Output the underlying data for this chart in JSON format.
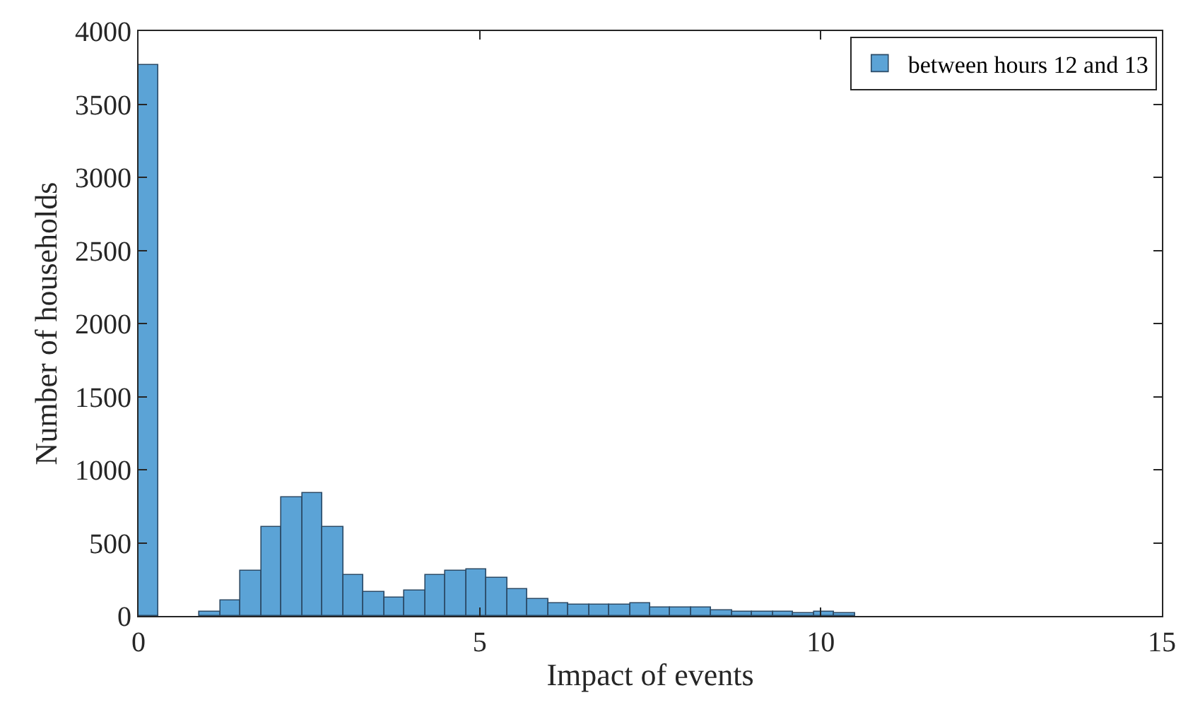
{
  "chart_data": {
    "type": "histogram",
    "xlabel": "Impact of events",
    "ylabel": "Number of households",
    "bins": [
      0,
      0.3,
      0.6,
      0.9,
      1.2,
      1.5,
      1.8,
      2.1,
      2.4,
      2.7,
      3.0,
      3.3,
      3.6,
      3.9,
      4.2,
      4.5,
      4.8,
      5.1,
      5.4,
      5.7,
      6.0,
      6.3,
      6.6,
      6.9,
      7.2,
      7.5,
      7.8,
      8.1,
      8.4,
      8.7,
      9.0,
      9.3,
      9.6,
      9.9,
      10.2,
      10.5,
      10.8,
      11.1,
      11.4,
      11.7,
      12.0,
      12.3,
      12.6,
      12.9,
      13.2,
      13.5,
      13.8,
      14.1,
      14.4,
      14.7,
      15.0
    ],
    "series": [
      {
        "name": "between hours 12 and 13",
        "color": "#5ba3d6",
        "values": [
          3770,
          0,
          0,
          25,
          110,
          310,
          610,
          810,
          840,
          610,
          280,
          160,
          130,
          175,
          280,
          310,
          320,
          260,
          180,
          120,
          90,
          80,
          80,
          80,
          90,
          55,
          60,
          60,
          40,
          30,
          30,
          30,
          20,
          30,
          20,
          0,
          0,
          0,
          0,
          0,
          0,
          0,
          0,
          0,
          0,
          0,
          0,
          0,
          0,
          0
        ]
      }
    ],
    "xlim": [
      0,
      15
    ],
    "xticks": [
      0,
      5,
      10,
      15
    ],
    "ylim": [
      0,
      4000
    ],
    "yticks": [
      0,
      500,
      1000,
      1500,
      2000,
      2500,
      3000,
      3500,
      4000
    ],
    "legend": "top right"
  }
}
